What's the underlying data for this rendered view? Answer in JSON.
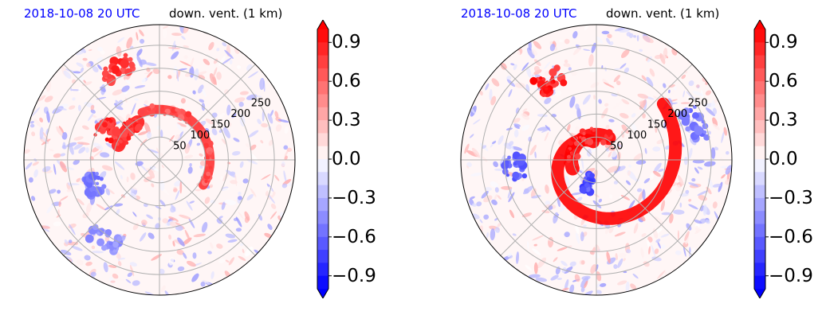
{
  "panels": [
    {
      "time_label": "2018-10-08 20 UTC",
      "var_label": "down. vent. (1 km)",
      "range_labels": [
        "50",
        "100",
        "150",
        "200",
        "250"
      ],
      "colorbar_ticks": [
        "0.9",
        "0.6",
        "0.3",
        "0.0",
        "−0.3",
        "−0.6",
        "−0.9"
      ]
    },
    {
      "time_label": "2018-10-08 20 UTC",
      "var_label": "down. vent. (1 km)",
      "range_labels": [
        "50",
        "100",
        "150",
        "200",
        "250"
      ],
      "colorbar_ticks": [
        "0.9",
        "0.6",
        "0.3",
        "0.0",
        "−0.3",
        "−0.6",
        "−0.9"
      ]
    }
  ],
  "chart_data": [
    {
      "type": "heatmap",
      "subtype": "polar",
      "title_left": "2018-10-08 20 UTC",
      "title_right": "down. vent. (1 km)",
      "radial_ticks": [
        50,
        100,
        150,
        200,
        250
      ],
      "azimuth_grid_deg": [
        0,
        45,
        90,
        135,
        180,
        225,
        270,
        315
      ],
      "colorbar": {
        "min": -1.0,
        "max": 1.0,
        "ticks": [
          0.9,
          0.6,
          0.3,
          0.0,
          -0.3,
          -0.6,
          -0.9
        ],
        "cmap": "bwr",
        "extend": "both"
      },
      "colors": {
        "positive": "#ff0000",
        "negative": "#0000ff",
        "neutral": "#ffffff",
        "title_time": "#0000ff"
      },
      "features": [
        {
          "kind": "arc",
          "value": 0.8,
          "r0": 100,
          "r1": 120,
          "a0": -30,
          "a1": 110
        },
        {
          "kind": "arc",
          "value": 0.9,
          "r0": 80,
          "r1": 110,
          "a0": 120,
          "a1": 160
        },
        {
          "kind": "blob",
          "value": 1.0,
          "r": 130,
          "a": 150
        },
        {
          "kind": "blob",
          "value": 0.9,
          "r": 220,
          "a": 115
        },
        {
          "kind": "blob",
          "value": -0.6,
          "r": 150,
          "a": 200
        },
        {
          "kind": "blob",
          "value": -0.5,
          "r": 210,
          "a": 235
        }
      ]
    },
    {
      "type": "heatmap",
      "subtype": "polar",
      "title_left": "2018-10-08 20 UTC",
      "title_right": "down. vent. (1 km)",
      "radial_ticks": [
        50,
        100,
        150,
        200,
        250
      ],
      "azimuth_grid_deg": [
        0,
        45,
        90,
        135,
        180,
        225,
        270,
        315
      ],
      "colorbar": {
        "min": -1.0,
        "max": 1.0,
        "ticks": [
          0.9,
          0.6,
          0.3,
          0.0,
          -0.3,
          -0.6,
          -0.9
        ],
        "cmap": "bwr",
        "extend": "both"
      },
      "colors": {
        "positive": "#ff0000",
        "negative": "#0000ff",
        "neutral": "#ffffff",
        "title_time": "#0000ff"
      },
      "features": [
        {
          "kind": "spiral",
          "value": 1.0,
          "r_start": 40,
          "r_end": 190,
          "a_start": 100,
          "a_end": 400
        },
        {
          "kind": "arc",
          "value": 1.0,
          "r0": 40,
          "r1": 70,
          "a0": 60,
          "a1": 200
        },
        {
          "kind": "blob",
          "value": 1.0,
          "r": 200,
          "a": 120
        },
        {
          "kind": "blob",
          "value": -0.8,
          "r": 55,
          "a": 250
        },
        {
          "kind": "blob",
          "value": -0.7,
          "r": 180,
          "a": 185
        },
        {
          "kind": "blob",
          "value": -0.6,
          "r": 230,
          "a": 20
        }
      ]
    }
  ]
}
